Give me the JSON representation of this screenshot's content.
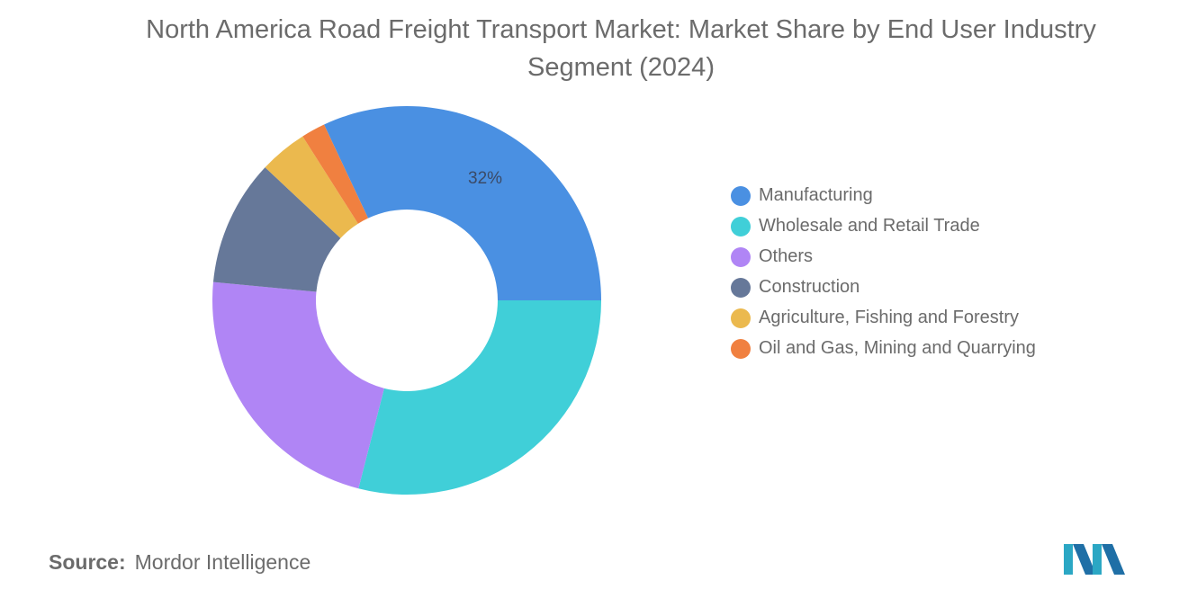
{
  "chart_data": {
    "type": "pie",
    "donut": true,
    "title": "North America Road Freight Transport Market: Market Share by End User Industry Segment (2024)",
    "series": [
      {
        "name": "Manufacturing",
        "value": 32,
        "color": "#4a90e2",
        "label": "32%"
      },
      {
        "name": "Wholesale and Retail Trade",
        "value": 29,
        "color": "#40cfd8",
        "label": ""
      },
      {
        "name": "Others",
        "value": 22.5,
        "color": "#b085f5",
        "label": ""
      },
      {
        "name": "Construction",
        "value": 10.5,
        "color": "#667899",
        "label": ""
      },
      {
        "name": "Agriculture, Fishing and Forestry",
        "value": 4,
        "color": "#ebb94e",
        "label": ""
      },
      {
        "name": "Oil and Gas, Mining and Quarrying",
        "value": 2,
        "color": "#f08040",
        "label": ""
      }
    ],
    "legend_position": "right"
  },
  "source": {
    "label": "Source:",
    "value": "Mordor Intelligence"
  }
}
